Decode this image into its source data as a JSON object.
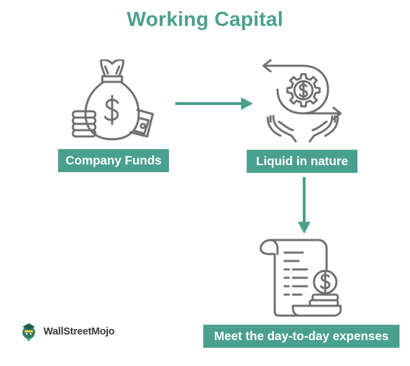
{
  "title": "Working Capital",
  "steps": [
    {
      "label": "Company Funds",
      "icon": "money-bag-icon"
    },
    {
      "label": "Liquid in nature",
      "icon": "cycle-hands-icon"
    },
    {
      "label": "Meet the day-to-day expenses",
      "icon": "receipt-icon"
    }
  ],
  "logo": {
    "text": "WallStreetMojo",
    "icon": "wallstreetmojo-logo-icon"
  },
  "colors": {
    "accent": "#4aa08f",
    "icon_stroke": "#707070",
    "arrow": "#4aa08f"
  }
}
